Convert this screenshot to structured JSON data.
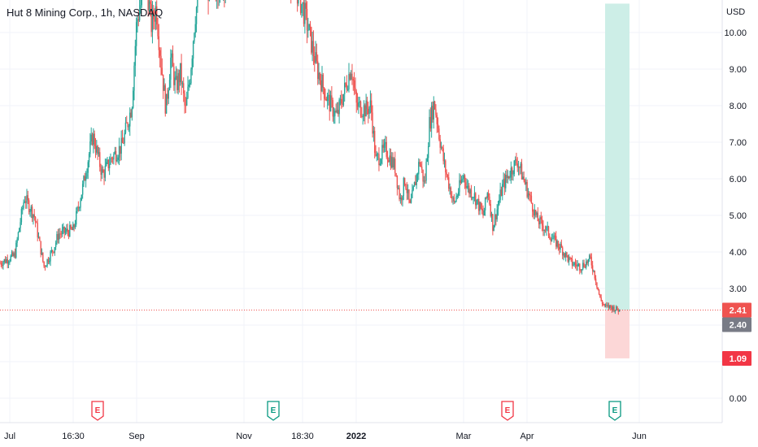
{
  "title": "Hut 8 Mining Corp., 1h, NASDAQ",
  "currency": "USD",
  "colors": {
    "up": "#26a69a",
    "down": "#ef5350",
    "grid": "#f0f3fa",
    "axis_text": "#131722",
    "last_price": "#ef5350",
    "current_price": "#787b86",
    "stop_label": "#f23645",
    "profit_zone": "#cdeee7",
    "loss_zone": "#fcd7d7",
    "earnings_red": "#f23645",
    "earnings_green": "#089981"
  },
  "price_labels": {
    "last": "2.41",
    "current": "2.40",
    "stop": "1.09",
    "target": "10.79"
  },
  "earnings_marker": "E",
  "chart_data": {
    "type": "candlestick",
    "title": "Hut 8 Mining Corp., 1h, NASDAQ",
    "ylabel": "USD",
    "ylim": [
      -0.6,
      11.0
    ],
    "y_ticks": [
      "10.00",
      "9.00",
      "8.00",
      "7.00",
      "6.00",
      "5.00",
      "4.00",
      "3.00",
      "2.00",
      "1.00",
      "0.00"
    ],
    "y_tick_values": [
      10,
      9,
      8,
      7,
      6,
      5,
      4,
      3,
      2,
      1,
      0
    ],
    "x_ticks": [
      {
        "label": "Jul",
        "t": 2,
        "bold": false
      },
      {
        "label": "16:30",
        "t": 15,
        "bold": false
      },
      {
        "label": "Sep",
        "t": 28,
        "bold": false
      },
      {
        "label": "Nov",
        "t": 50,
        "bold": false
      },
      {
        "label": "18:30",
        "t": 62,
        "bold": false
      },
      {
        "label": "2022",
        "t": 73,
        "bold": true
      },
      {
        "label": "Mar",
        "t": 95,
        "bold": false
      },
      {
        "label": "Apr",
        "t": 108,
        "bold": false
      },
      {
        "label": "Jun",
        "t": 131,
        "bold": false
      }
    ],
    "t_range": [
      0,
      148
    ],
    "close_path": [
      [
        0,
        3.7
      ],
      [
        3,
        3.9
      ],
      [
        5,
        5.5
      ],
      [
        7,
        5.0
      ],
      [
        9,
        3.6
      ],
      [
        11,
        4.1
      ],
      [
        12,
        4.5
      ],
      [
        15,
        4.6
      ],
      [
        17,
        5.8
      ],
      [
        19,
        7.2
      ],
      [
        21,
        6.1
      ],
      [
        23,
        6.6
      ],
      [
        25,
        6.9
      ],
      [
        27,
        8.0
      ],
      [
        28,
        10.3
      ],
      [
        30,
        11.4
      ],
      [
        31,
        10.2
      ],
      [
        32,
        10.7
      ],
      [
        33,
        9.2
      ],
      [
        34,
        7.9
      ],
      [
        35,
        9.3
      ],
      [
        36,
        8.5
      ],
      [
        37,
        8.9
      ],
      [
        38,
        7.8
      ],
      [
        39,
        8.9
      ],
      [
        40,
        10.5
      ],
      [
        41,
        11.2
      ],
      [
        42,
        11.6
      ],
      [
        43,
        11.0
      ],
      [
        44,
        11.2
      ],
      [
        47,
        11.6
      ],
      [
        55,
        11.9
      ],
      [
        60,
        11.5
      ],
      [
        62,
        10.7
      ],
      [
        63,
        10.2
      ],
      [
        65,
        9.0
      ],
      [
        67,
        8.2
      ],
      [
        69,
        7.7
      ],
      [
        71,
        8.6
      ],
      [
        72,
        9.1
      ],
      [
        73,
        8.0
      ],
      [
        75,
        7.9
      ],
      [
        76,
        8.0
      ],
      [
        77,
        6.5
      ],
      [
        79,
        6.8
      ],
      [
        81,
        6.3
      ],
      [
        82,
        5.4
      ],
      [
        83,
        6.0
      ],
      [
        84,
        5.2
      ],
      [
        86,
        6.5
      ],
      [
        87,
        5.8
      ],
      [
        88,
        7.5
      ],
      [
        89,
        8.1
      ],
      [
        90,
        7.2
      ],
      [
        91,
        6.4
      ],
      [
        93,
        5.3
      ],
      [
        95,
        6.1
      ],
      [
        96,
        5.7
      ],
      [
        97,
        5.6
      ],
      [
        99,
        5.0
      ],
      [
        100,
        5.7
      ],
      [
        101,
        4.7
      ],
      [
        103,
        5.8
      ],
      [
        105,
        6.3
      ],
      [
        106,
        6.5
      ],
      [
        108,
        5.7
      ],
      [
        110,
        4.9
      ],
      [
        112,
        4.6
      ],
      [
        113,
        4.4
      ],
      [
        115,
        4.1
      ],
      [
        117,
        3.7
      ],
      [
        119,
        3.6
      ],
      [
        121,
        3.8
      ],
      [
        122,
        3.3
      ],
      [
        123,
        2.7
      ],
      [
        124,
        2.5
      ],
      [
        125,
        2.5
      ],
      [
        127,
        2.4
      ]
    ],
    "position": {
      "entry": 2.41,
      "target": 10.79,
      "stop": 1.09,
      "t_start": 124,
      "t_end": 129
    },
    "earnings_events": [
      {
        "t": 20,
        "color": "red"
      },
      {
        "t": 56,
        "color": "green"
      },
      {
        "t": 104,
        "color": "red"
      },
      {
        "t": 126,
        "color": "green"
      }
    ]
  }
}
